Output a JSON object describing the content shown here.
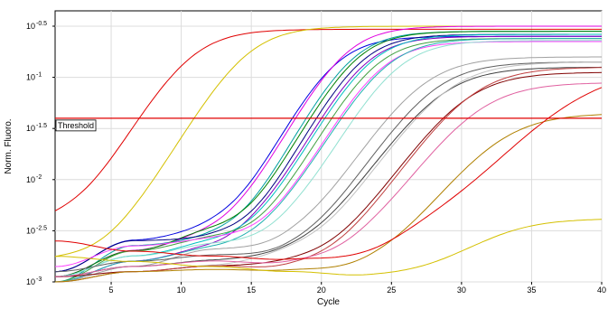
{
  "chart_data": {
    "type": "line",
    "xlabel": "Cycle",
    "ylabel": "Norm. Fluoro.",
    "xlim": [
      1,
      40
    ],
    "ylim_log10": [
      -3,
      -0.35
    ],
    "y_scale": "log",
    "grid": true,
    "x_ticks": [
      {
        "value": 5,
        "label": "5"
      },
      {
        "value": 10,
        "label": "10"
      },
      {
        "value": 15,
        "label": "15"
      },
      {
        "value": 20,
        "label": "20"
      },
      {
        "value": 25,
        "label": "25"
      },
      {
        "value": 30,
        "label": "30"
      },
      {
        "value": 35,
        "label": "35"
      },
      {
        "value": 40,
        "label": "40"
      }
    ],
    "y_ticks": [
      {
        "log10": -0.5,
        "label": "10",
        "exp": "-0.5"
      },
      {
        "log10": -1,
        "label": "10",
        "exp": "-1"
      },
      {
        "log10": -1.5,
        "label": "10",
        "exp": "-1.5"
      },
      {
        "log10": -2,
        "label": "10",
        "exp": "-2"
      },
      {
        "log10": -2.5,
        "label": "10",
        "exp": "-2.5"
      },
      {
        "log10": -3,
        "label": "10",
        "exp": "-3"
      }
    ],
    "threshold": {
      "label": "Threshold",
      "log10": -1.4,
      "color": "#e00000"
    },
    "series": [
      {
        "color": "#e00000",
        "top": -0.53,
        "mid": 10.5,
        "k": 0.55,
        "base": [
          -2.47,
          -2.6,
          -2.58,
          -2.8,
          -2.9,
          -2.95,
          -2.9,
          -2.88
        ]
      },
      {
        "color": "#d4c000",
        "top": -0.5,
        "mid": 14.5,
        "k": 0.55,
        "base": [
          -2.8,
          -2.85,
          -2.9,
          -2.95,
          -3.0,
          -2.95,
          -2.9,
          -2.9
        ]
      },
      {
        "color": "#0000e0",
        "top": -0.6,
        "mid": 20.8,
        "k": 0.6,
        "base": [
          -2.9,
          -2.6,
          -2.55,
          -2.7,
          -2.9,
          -3.0,
          -2.95,
          -2.9
        ]
      },
      {
        "color": "#e000e0",
        "top": -0.5,
        "mid": 21.5,
        "k": 0.6,
        "base": [
          -2.95,
          -2.7,
          -2.6,
          -2.6,
          -2.75,
          -2.95,
          -2.95,
          -2.9
        ]
      },
      {
        "color": "#00a0a0",
        "top": -0.55,
        "mid": 22.0,
        "k": 0.6,
        "base": [
          -3.0,
          -2.65,
          -2.62,
          -2.75,
          -2.85,
          -2.95,
          -2.9,
          -2.9
        ]
      },
      {
        "color": "#008000",
        "top": -0.55,
        "mid": 22.3,
        "k": 0.6,
        "base": [
          -2.95,
          -2.7,
          -2.55,
          -2.65,
          -2.85,
          -2.95,
          -2.9,
          -2.9
        ]
      },
      {
        "color": "#000080",
        "top": -0.58,
        "mid": 22.6,
        "k": 0.6,
        "base": [
          -2.9,
          -2.6,
          -2.6,
          -2.7,
          -2.9,
          -3.0,
          -2.95,
          -2.92
        ]
      },
      {
        "color": "#8000c0",
        "top": -0.6,
        "mid": 22.9,
        "k": 0.6,
        "base": [
          -3.0,
          -2.8,
          -2.7,
          -2.6,
          -2.7,
          -2.9,
          -2.95,
          -2.9
        ]
      },
      {
        "color": "#00c0c0",
        "top": -0.58,
        "mid": 23.3,
        "k": 0.58,
        "base": [
          -2.95,
          -2.75,
          -2.65,
          -2.7,
          -2.8,
          -2.95,
          -2.95,
          -2.9
        ]
      },
      {
        "color": "#40a040",
        "top": -0.62,
        "mid": 23.6,
        "k": 0.58,
        "base": [
          -3.0,
          -2.7,
          -2.6,
          -2.7,
          -2.85,
          -2.95,
          -2.9,
          -2.9
        ]
      },
      {
        "color": "#ff40ff",
        "top": -0.65,
        "mid": 24.0,
        "k": 0.58,
        "base": [
          -2.85,
          -2.65,
          -2.6,
          -2.65,
          -2.8,
          -2.95,
          -2.92,
          -2.9
        ]
      },
      {
        "color": "#20b0b0",
        "top": -0.62,
        "mid": 24.4,
        "k": 0.56,
        "base": [
          -3.0,
          -2.8,
          -2.7,
          -2.7,
          -2.8,
          -2.9,
          -2.9,
          -2.9
        ]
      },
      {
        "color": "#90e0d0",
        "top": -0.64,
        "mid": 25.2,
        "k": 0.56,
        "base": [
          -2.95,
          -2.75,
          -2.65,
          -2.7,
          -2.85,
          -2.9,
          -2.92,
          -2.9
        ]
      },
      {
        "color": "#a0a0a0",
        "top": -0.8,
        "mid": 27.0,
        "k": 0.5,
        "base": [
          -3.0,
          -2.85,
          -2.7,
          -2.75,
          -2.85,
          -2.9,
          -2.95,
          -2.9
        ]
      },
      {
        "color": "#606060",
        "top": -0.85,
        "mid": 27.8,
        "k": 0.5,
        "base": [
          -2.9,
          -2.8,
          -2.75,
          -2.8,
          -2.85,
          -2.95,
          -2.95,
          -2.9
        ]
      },
      {
        "color": "#404040",
        "top": -0.9,
        "mid": 28.3,
        "k": 0.48,
        "base": [
          -2.95,
          -2.85,
          -2.8,
          -2.8,
          -2.85,
          -2.9,
          -2.95,
          -2.92
        ]
      },
      {
        "color": "#c0c0c0",
        "top": -0.85,
        "mid": 28.8,
        "k": 0.48,
        "base": [
          -3.0,
          -2.9,
          -2.85,
          -2.8,
          -2.9,
          -2.95,
          -2.95,
          -2.92
        ]
      },
      {
        "color": "#800000",
        "top": -0.95,
        "mid": 30.0,
        "k": 0.48,
        "base": [
          -2.95,
          -2.9,
          -2.85,
          -2.85,
          -2.9,
          -2.95,
          -2.97,
          -2.95
        ]
      },
      {
        "color": "#c04040",
        "top": -0.9,
        "mid": 30.5,
        "k": 0.48,
        "base": [
          -3.0,
          -2.9,
          -2.85,
          -2.9,
          -2.95,
          -2.95,
          -2.98,
          -2.95
        ]
      },
      {
        "color": "#e060a0",
        "top": -1.05,
        "mid": 31.0,
        "k": 0.46,
        "base": [
          -2.95,
          -2.85,
          -2.8,
          -2.85,
          -2.9,
          -2.95,
          -2.98,
          -2.95
        ]
      },
      {
        "color": "#b08000",
        "top": -1.35,
        "mid": 32.5,
        "k": 0.45,
        "base": [
          -3.0,
          -2.9,
          -2.88,
          -2.9,
          -2.95,
          -2.97,
          -2.98,
          -2.96
        ]
      },
      {
        "color": "#e00000",
        "top": -0.9,
        "mid": 38.5,
        "k": 0.35,
        "base": [
          -2.6,
          -2.7,
          -2.75,
          -2.8,
          -2.85,
          -2.75,
          -2.85,
          -2.88
        ]
      },
      {
        "color": "#d4c000",
        "top": -2.38,
        "mid": 32.0,
        "k": 0.45,
        "base": [
          -2.75,
          -2.8,
          -2.85,
          -2.9,
          -2.95,
          -2.95,
          -2.97,
          -2.97
        ]
      }
    ]
  }
}
